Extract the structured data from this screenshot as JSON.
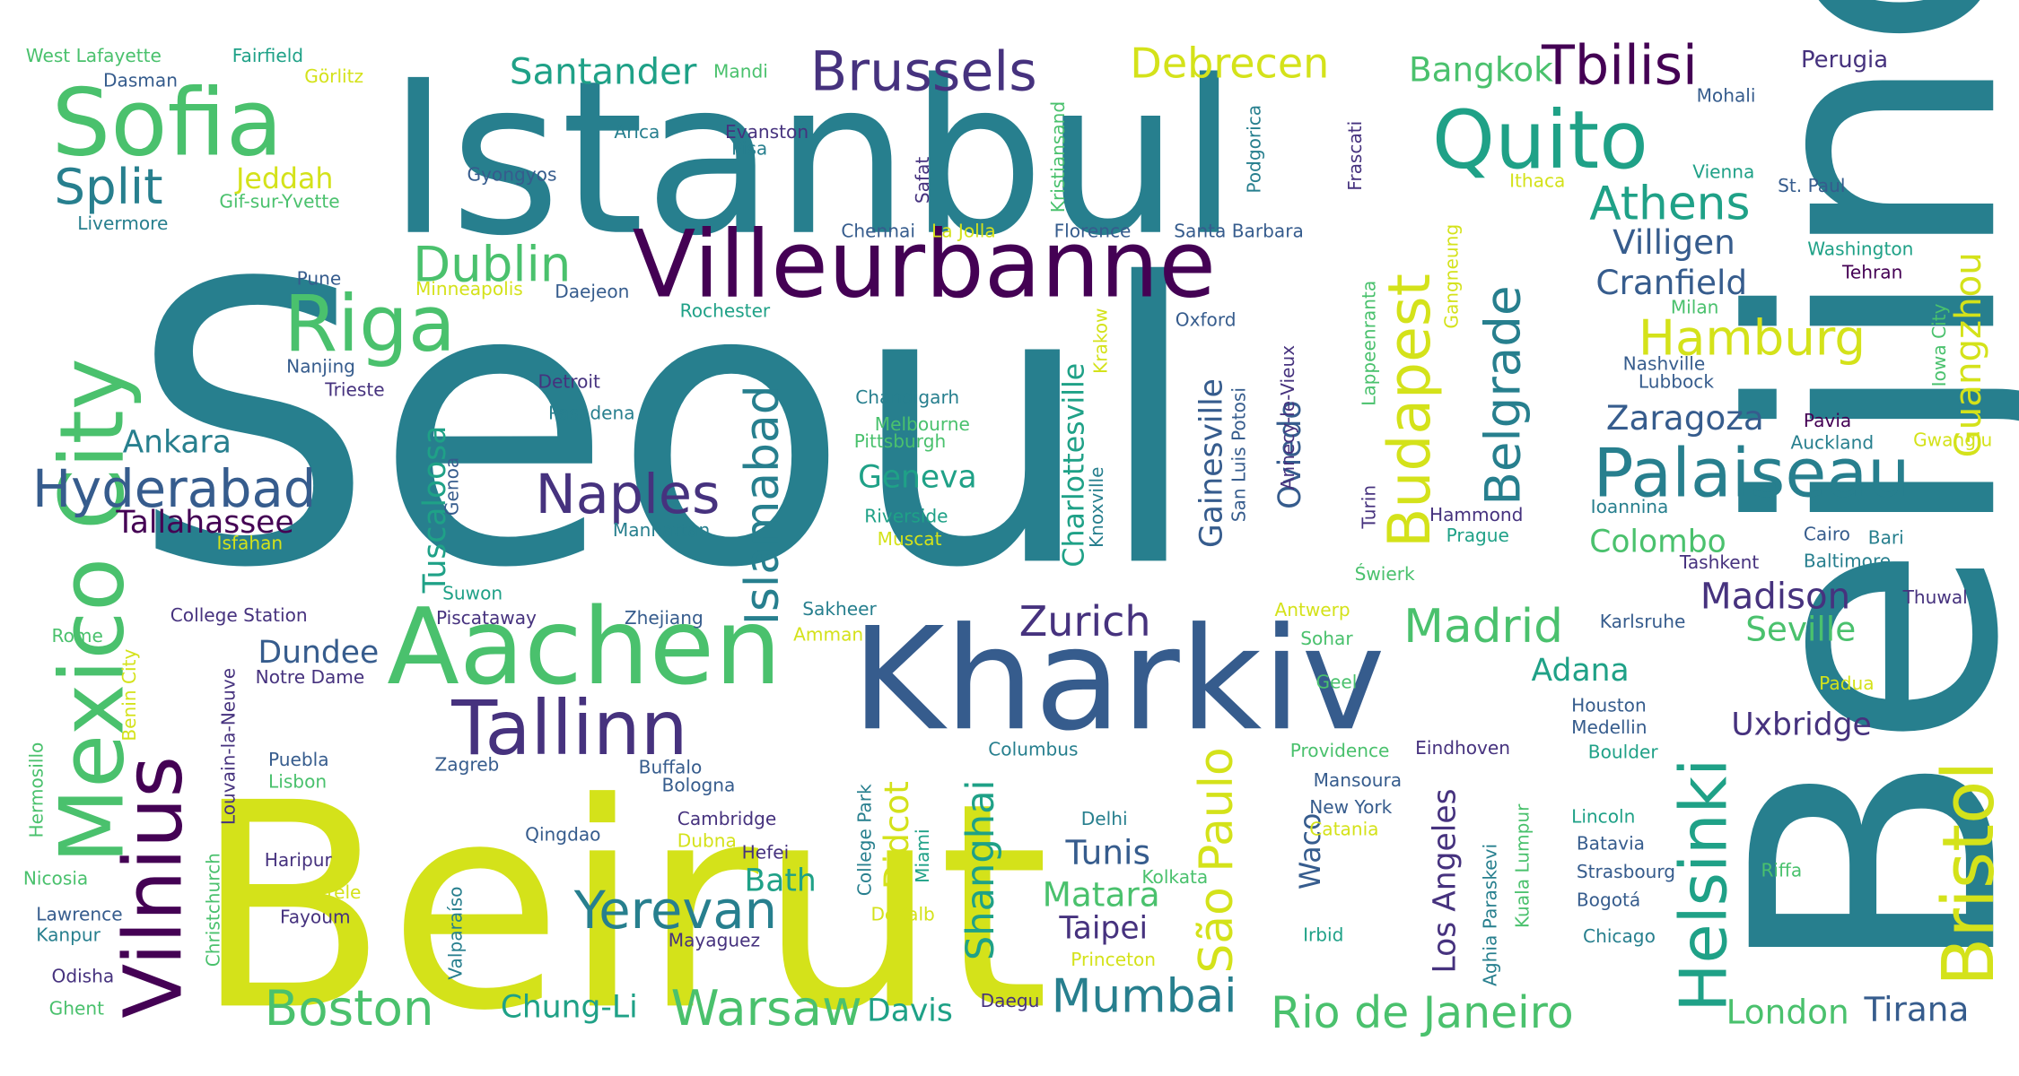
{
  "palette": {
    "navy": "#46327e",
    "purple": "#440154",
    "blue": "#365c8d",
    "teal": "#277f8e",
    "green": "#1fa187",
    "lightgreen": "#4ac16d",
    "lime": "#a0da39",
    "yellow": "#d4e21a"
  },
  "words": [
    {
      "text": "Seoul",
      "color": "teal"
    },
    {
      "text": "Beirut",
      "color": "yellow"
    },
    {
      "text": "Beijing",
      "color": "teal"
    },
    {
      "text": "Istanbul",
      "color": "teal"
    },
    {
      "text": "Kharkiv",
      "color": "blue"
    },
    {
      "text": "Villeurbanne",
      "color": "purple"
    },
    {
      "text": "Aachen",
      "color": "lightgreen"
    },
    {
      "text": "Sofia",
      "color": "lightgreen"
    },
    {
      "text": "Quito",
      "color": "green"
    },
    {
      "text": "Mexico City",
      "color": "lightgreen"
    },
    {
      "text": "Vilnius",
      "color": "purple"
    },
    {
      "text": "Tallinn",
      "color": "navy"
    },
    {
      "text": "Riga",
      "color": "lightgreen"
    },
    {
      "text": "Bristol",
      "color": "yellow"
    },
    {
      "text": "Helsinki",
      "color": "green"
    },
    {
      "text": "Palaiseau",
      "color": "teal"
    },
    {
      "text": "Budapest",
      "color": "yellow"
    },
    {
      "text": "Brussels",
      "color": "navy"
    },
    {
      "text": "Tbilisi",
      "color": "purple"
    },
    {
      "text": "Hyderabad",
      "color": "blue"
    },
    {
      "text": "Yerevan",
      "color": "teal"
    },
    {
      "text": "Naples",
      "color": "navy"
    },
    {
      "text": "Dublin",
      "color": "lightgreen"
    },
    {
      "text": "Split",
      "color": "teal"
    },
    {
      "text": "Athens",
      "color": "green"
    },
    {
      "text": "Hamburg",
      "color": "yellow"
    },
    {
      "text": "Boston",
      "color": "lightgreen"
    },
    {
      "text": "Warsaw",
      "color": "lightgreen"
    },
    {
      "text": "Mumbai",
      "color": "teal"
    },
    {
      "text": "Rio de Janeiro",
      "color": "lightgreen"
    },
    {
      "text": "São Paulo",
      "color": "yellow"
    },
    {
      "text": "Madrid",
      "color": "lightgreen"
    },
    {
      "text": "Zurich",
      "color": "navy"
    },
    {
      "text": "Islamabad",
      "color": "teal"
    },
    {
      "text": "Belgrade",
      "color": "teal"
    },
    {
      "text": "Debrecen",
      "color": "yellow"
    },
    {
      "text": "Santander",
      "color": "green"
    },
    {
      "text": "Bangkok",
      "color": "lightgreen"
    },
    {
      "text": "Perugia",
      "color": "navy"
    },
    {
      "text": "Guangzhou",
      "color": "yellow"
    },
    {
      "text": "Villigen",
      "color": "blue"
    },
    {
      "text": "Cranfield",
      "color": "blue"
    },
    {
      "text": "Zaragoza",
      "color": "blue"
    },
    {
      "text": "Madison",
      "color": "navy"
    },
    {
      "text": "Seville",
      "color": "lightgreen"
    },
    {
      "text": "Colombo",
      "color": "lightgreen"
    },
    {
      "text": "Tirana",
      "color": "blue"
    },
    {
      "text": "London",
      "color": "lightgreen"
    },
    {
      "text": "Uxbridge",
      "color": "navy"
    },
    {
      "text": "Shanghai",
      "color": "green"
    },
    {
      "text": "Didcot",
      "color": "yellow"
    },
    {
      "text": "Tunis",
      "color": "blue"
    },
    {
      "text": "Taipei",
      "color": "navy"
    },
    {
      "text": "Matara",
      "color": "lightgreen"
    },
    {
      "text": "Adana",
      "color": "green"
    },
    {
      "text": "Los Angeles",
      "color": "navy"
    },
    {
      "text": "Gainesville",
      "color": "blue"
    },
    {
      "text": "Oviedo",
      "color": "blue"
    },
    {
      "text": "Charlottesville",
      "color": "green"
    },
    {
      "text": "Tuscaloosa",
      "color": "green"
    },
    {
      "text": "Geneva",
      "color": "green"
    },
    {
      "text": "Bath",
      "color": "green"
    },
    {
      "text": "Dundee",
      "color": "blue"
    },
    {
      "text": "Ankara",
      "color": "teal"
    },
    {
      "text": "Tallahassee",
      "color": "purple"
    },
    {
      "text": "Chung-Li",
      "color": "green"
    },
    {
      "text": "Davis",
      "color": "green"
    },
    {
      "text": "Jeddah",
      "color": "yellow"
    },
    {
      "text": "Waco",
      "color": "blue"
    },
    {
      "text": "Pavia",
      "color": "purple"
    },
    {
      "text": "Auckland",
      "color": "teal"
    },
    {
      "text": "Gwangju",
      "color": "yellow"
    },
    {
      "text": "Iowa City",
      "color": "lightgreen"
    },
    {
      "text": "Nashville",
      "color": "blue"
    },
    {
      "text": "Lubbock",
      "color": "blue"
    },
    {
      "text": "Milan",
      "color": "lightgreen"
    },
    {
      "text": "Tehran",
      "color": "purple"
    },
    {
      "text": "Washington",
      "color": "green"
    },
    {
      "text": "St. Paul",
      "color": "blue"
    },
    {
      "text": "Vienna",
      "color": "green"
    },
    {
      "text": "Mohali",
      "color": "blue"
    },
    {
      "text": "Ithaca",
      "color": "yellow"
    },
    {
      "text": "Kristiansand",
      "color": "lightgreen"
    },
    {
      "text": "Frascati",
      "color": "navy"
    },
    {
      "text": "Podgorica",
      "color": "teal"
    },
    {
      "text": "Evanston",
      "color": "navy"
    },
    {
      "text": "Arica",
      "color": "teal"
    },
    {
      "text": "Pisa",
      "color": "teal"
    },
    {
      "text": "Safat",
      "color": "navy"
    },
    {
      "text": "Mandi",
      "color": "lightgreen"
    },
    {
      "text": "Gyongyos",
      "color": "blue"
    },
    {
      "text": "Chennai",
      "color": "blue"
    },
    {
      "text": "La Jolla",
      "color": "yellow"
    },
    {
      "text": "Florence",
      "color": "blue"
    },
    {
      "text": "Santa Barbara",
      "color": "blue"
    },
    {
      "text": "West Lafayette",
      "color": "lightgreen"
    },
    {
      "text": "Fairfield",
      "color": "green"
    },
    {
      "text": "Dasman",
      "color": "blue"
    },
    {
      "text": "Görlitz",
      "color": "yellow"
    },
    {
      "text": "Gif-sur-Yvette",
      "color": "lightgreen"
    },
    {
      "text": "Livermore",
      "color": "teal"
    },
    {
      "text": "Pune",
      "color": "blue"
    },
    {
      "text": "Minneapolis",
      "color": "yellow"
    },
    {
      "text": "Daejeon",
      "color": "blue"
    },
    {
      "text": "Rochester",
      "color": "green"
    },
    {
      "text": "Nanjing",
      "color": "blue"
    },
    {
      "text": "Trieste",
      "color": "navy"
    },
    {
      "text": "Detroit",
      "color": "navy"
    },
    {
      "text": "Pasadena",
      "color": "teal"
    },
    {
      "text": "Chandigarh",
      "color": "teal"
    },
    {
      "text": "Melbourne",
      "color": "lightgreen"
    },
    {
      "text": "Pittsburgh",
      "color": "lightgreen"
    },
    {
      "text": "Riverside",
      "color": "green"
    },
    {
      "text": "Muscat",
      "color": "yellow"
    },
    {
      "text": "Manhattan",
      "color": "teal"
    },
    {
      "text": "Isfahan",
      "color": "yellow"
    },
    {
      "text": "Oxford",
      "color": "blue"
    },
    {
      "text": "Krakow",
      "color": "yellow"
    },
    {
      "text": "Knoxville",
      "color": "teal"
    },
    {
      "text": "San Luis Potosi",
      "color": "blue"
    },
    {
      "text": "Annecy-le-Vieux",
      "color": "navy"
    },
    {
      "text": "Lappeenranta",
      "color": "lightgreen"
    },
    {
      "text": "Gangneung",
      "color": "yellow"
    },
    {
      "text": "Turin",
      "color": "navy"
    },
    {
      "text": "Hammond",
      "color": "navy"
    },
    {
      "text": "Prague",
      "color": "green"
    },
    {
      "text": "Świerk",
      "color": "lightgreen"
    },
    {
      "text": "Ioannina",
      "color": "teal"
    },
    {
      "text": "Cairo",
      "color": "blue"
    },
    {
      "text": "Bari",
      "color": "teal"
    },
    {
      "text": "Tashkent",
      "color": "navy"
    },
    {
      "text": "Baltimore",
      "color": "teal"
    },
    {
      "text": "Thuwal",
      "color": "navy"
    },
    {
      "text": "Genoa",
      "color": "blue"
    },
    {
      "text": "Suwon",
      "color": "green"
    },
    {
      "text": "Piscataway",
      "color": "navy"
    },
    {
      "text": "Zhejiang",
      "color": "blue"
    },
    {
      "text": "Sakheer",
      "color": "teal"
    },
    {
      "text": "Amman",
      "color": "yellow"
    },
    {
      "text": "Antwerp",
      "color": "yellow"
    },
    {
      "text": "Sohar",
      "color": "lightgreen"
    },
    {
      "text": "Karlsruhe",
      "color": "blue"
    },
    {
      "text": "Geel",
      "color": "lightgreen"
    },
    {
      "text": "Padua",
      "color": "yellow"
    },
    {
      "text": "Houston",
      "color": "blue"
    },
    {
      "text": "Medellin",
      "color": "blue"
    },
    {
      "text": "Boulder",
      "color": "green"
    },
    {
      "text": "College Station",
      "color": "navy"
    },
    {
      "text": "Rome",
      "color": "lightgreen"
    },
    {
      "text": "Benin City",
      "color": "yellow"
    },
    {
      "text": "Louvain-la-Neuve",
      "color": "navy"
    },
    {
      "text": "Notre Dame",
      "color": "navy"
    },
    {
      "text": "Hermosillo",
      "color": "lightgreen"
    },
    {
      "text": "Puebla",
      "color": "blue"
    },
    {
      "text": "Lisbon",
      "color": "lightgreen"
    },
    {
      "text": "Zagreb",
      "color": "blue"
    },
    {
      "text": "Buffalo",
      "color": "blue"
    },
    {
      "text": "Bologna",
      "color": "blue"
    },
    {
      "text": "Cambridge",
      "color": "navy"
    },
    {
      "text": "Dubna",
      "color": "yellow"
    },
    {
      "text": "Hefei",
      "color": "navy"
    },
    {
      "text": "Qingdao",
      "color": "blue"
    },
    {
      "text": "College Park",
      "color": "teal"
    },
    {
      "text": "Miami",
      "color": "green"
    },
    {
      "text": "Columbus",
      "color": "teal"
    },
    {
      "text": "Providence",
      "color": "lightgreen"
    },
    {
      "text": "Eindhoven",
      "color": "navy"
    },
    {
      "text": "Mansoura",
      "color": "blue"
    },
    {
      "text": "New York",
      "color": "blue"
    },
    {
      "text": "Catania",
      "color": "yellow"
    },
    {
      "text": "Aghia Paraskevi",
      "color": "teal"
    },
    {
      "text": "Kuala Lumpur",
      "color": "lightgreen"
    },
    {
      "text": "Lincoln",
      "color": "green"
    },
    {
      "text": "Batavia",
      "color": "blue"
    },
    {
      "text": "Strasbourg",
      "color": "blue"
    },
    {
      "text": "Riffa",
      "color": "lightgreen"
    },
    {
      "text": "Bogotá",
      "color": "blue"
    },
    {
      "text": "Chicago",
      "color": "teal"
    },
    {
      "text": "Delhi",
      "color": "teal"
    },
    {
      "text": "Kolkata",
      "color": "lightgreen"
    },
    {
      "text": "Irbid",
      "color": "green"
    },
    {
      "text": "Princeton",
      "color": "yellow"
    },
    {
      "text": "DeKalb",
      "color": "yellow"
    },
    {
      "text": "Mayaguez",
      "color": "navy"
    },
    {
      "text": "Daegu",
      "color": "navy"
    },
    {
      "text": "Valparaíso",
      "color": "teal"
    },
    {
      "text": "Haripur",
      "color": "navy"
    },
    {
      "text": "Măgurele",
      "color": "yellow"
    },
    {
      "text": "Fayoum",
      "color": "navy"
    },
    {
      "text": "Nicosia",
      "color": "lightgreen"
    },
    {
      "text": "Lawrence",
      "color": "blue"
    },
    {
      "text": "Kanpur",
      "color": "teal"
    },
    {
      "text": "Odisha",
      "color": "navy"
    },
    {
      "text": "Ghent",
      "color": "lightgreen"
    },
    {
      "text": "Christchurch",
      "color": "lightgreen"
    }
  ]
}
